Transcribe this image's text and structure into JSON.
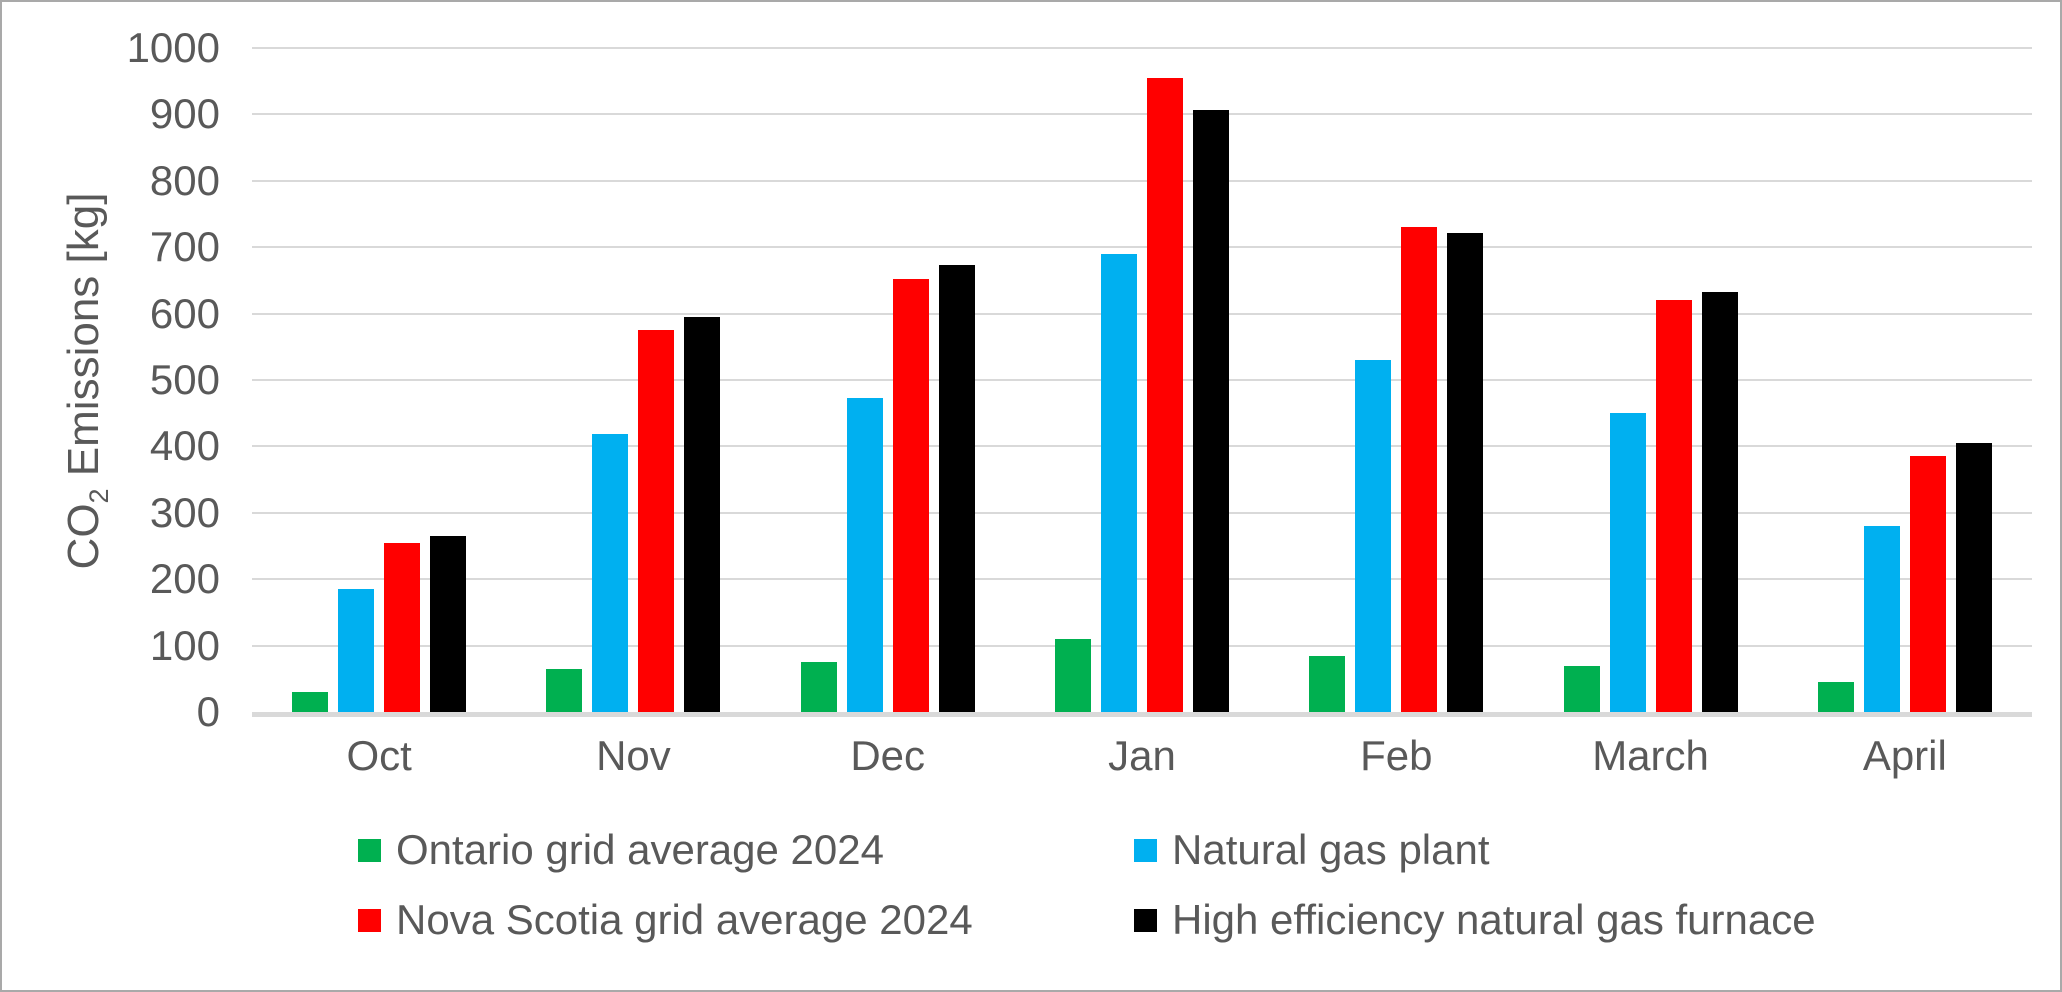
{
  "chart_data": {
    "type": "bar",
    "title": "",
    "ylabel": "CO2 Emissions [kg]",
    "ylabel_parts": {
      "prefix": "CO",
      "subscript": "2",
      "suffix": " Emissions [kg]"
    },
    "xlabel": "",
    "categories": [
      "Oct",
      "Nov",
      "Dec",
      "Jan",
      "Feb",
      "March",
      "April"
    ],
    "series": [
      {
        "name": "Ontario grid average 2024",
        "color": "#00B050",
        "values": [
          30,
          65,
          75,
          110,
          85,
          70,
          45
        ]
      },
      {
        "name": "Natural gas plant",
        "color": "#00B0F0",
        "values": [
          185,
          418,
          473,
          690,
          530,
          450,
          280
        ]
      },
      {
        "name": "Nova Scotia grid average 2024",
        "color": "#FF0000",
        "values": [
          255,
          575,
          652,
          955,
          730,
          620,
          385
        ]
      },
      {
        "name": "High efficiency natural gas furnace",
        "color": "#000000",
        "values": [
          265,
          595,
          673,
          907,
          722,
          633,
          405
        ]
      }
    ],
    "ylim": [
      0,
      1000
    ],
    "yticks": [
      0,
      100,
      200,
      300,
      400,
      500,
      600,
      700,
      800,
      900,
      1000
    ],
    "grid": true,
    "legend_position": "bottom",
    "legend_columns": [
      [
        0,
        2
      ],
      [
        1,
        3
      ]
    ]
  },
  "colors": {
    "text": "#595959",
    "gridline": "#D9D9D9",
    "axis_line": "#D9D9D9",
    "background": "#FFFFFF",
    "frame_border": "#A9A9A9"
  }
}
